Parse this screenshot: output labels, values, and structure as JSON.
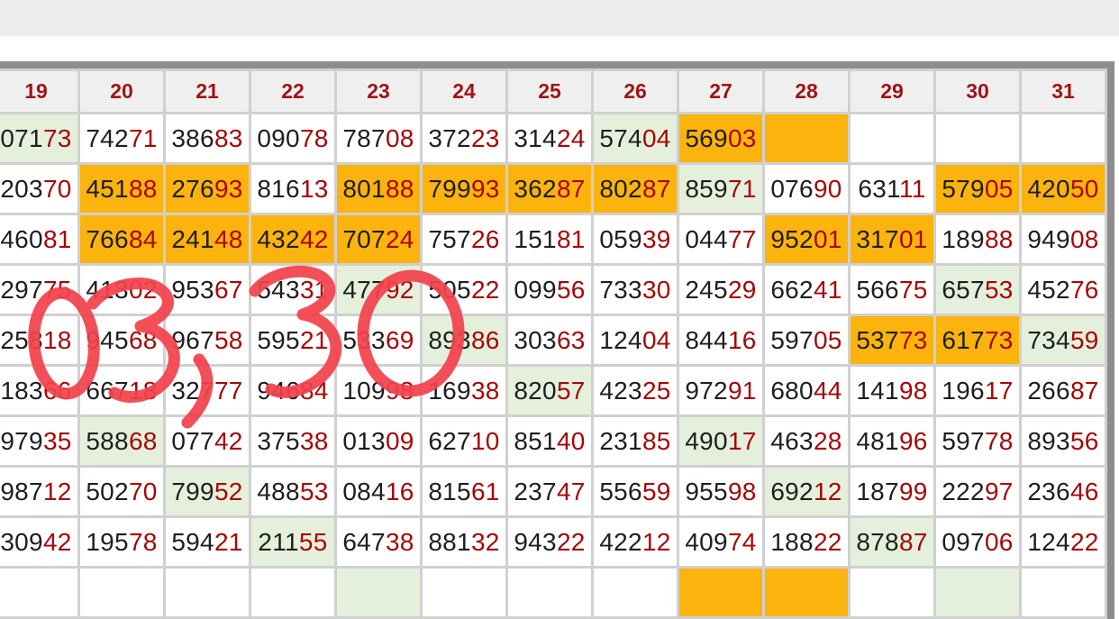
{
  "table": {
    "columns": [
      "19",
      "20",
      "21",
      "22",
      "23",
      "24",
      "25",
      "26",
      "27",
      "28",
      "29",
      "30",
      "31"
    ],
    "rows": [
      {
        "cells": [
          {
            "v": "07173",
            "bg": "g"
          },
          {
            "v": "74271"
          },
          {
            "v": "38683"
          },
          {
            "v": "09078"
          },
          {
            "v": "78708"
          },
          {
            "v": "37223"
          },
          {
            "v": "31424"
          },
          {
            "v": "57404",
            "bg": "g"
          },
          {
            "v": "56903",
            "bg": "o"
          },
          {
            "v": "",
            "bg": "o"
          },
          {
            "v": ""
          },
          {
            "v": ""
          },
          {
            "v": ""
          }
        ]
      },
      {
        "cells": [
          {
            "v": "20370"
          },
          {
            "v": "45188",
            "bg": "o"
          },
          {
            "v": "27693",
            "bg": "o"
          },
          {
            "v": "81613"
          },
          {
            "v": "80188",
            "bg": "o"
          },
          {
            "v": "79993",
            "bg": "o"
          },
          {
            "v": "36287",
            "bg": "o"
          },
          {
            "v": "80287",
            "bg": "o"
          },
          {
            "v": "85971",
            "bg": "g"
          },
          {
            "v": "07690"
          },
          {
            "v": "63111"
          },
          {
            "v": "57905",
            "bg": "o"
          },
          {
            "v": "42050",
            "bg": "o"
          }
        ]
      },
      {
        "cells": [
          {
            "v": "46081"
          },
          {
            "v": "76684",
            "bg": "o"
          },
          {
            "v": "24148",
            "bg": "o"
          },
          {
            "v": "43242",
            "bg": "o"
          },
          {
            "v": "70724",
            "bg": "o"
          },
          {
            "v": "75726"
          },
          {
            "v": "15181"
          },
          {
            "v": "05939"
          },
          {
            "v": "04477"
          },
          {
            "v": "95201",
            "bg": "o"
          },
          {
            "v": "31701",
            "bg": "o"
          },
          {
            "v": "18988"
          },
          {
            "v": "94908"
          }
        ]
      },
      {
        "cells": [
          {
            "v": "29775"
          },
          {
            "v": "41302"
          },
          {
            "v": "95367"
          },
          {
            "v": "54331"
          },
          {
            "v": "47792",
            "bg": "g"
          },
          {
            "v": "50522"
          },
          {
            "v": "09956"
          },
          {
            "v": "73330"
          },
          {
            "v": "24529"
          },
          {
            "v": "66241"
          },
          {
            "v": "56675"
          },
          {
            "v": "65753",
            "bg": "g"
          },
          {
            "v": "45276"
          }
        ]
      },
      {
        "cells": [
          {
            "v": "25818"
          },
          {
            "v": "94568"
          },
          {
            "v": "96758"
          },
          {
            "v": "59521"
          },
          {
            "v": "53369"
          },
          {
            "v": "89386",
            "bg": "g"
          },
          {
            "v": "30363"
          },
          {
            "v": "12404"
          },
          {
            "v": "84416"
          },
          {
            "v": "59705"
          },
          {
            "v": "53773",
            "bg": "o"
          },
          {
            "v": "61773",
            "bg": "o"
          },
          {
            "v": "73459",
            "bg": "g"
          }
        ]
      },
      {
        "cells": [
          {
            "v": "18366"
          },
          {
            "v": "66718"
          },
          {
            "v": "32777"
          },
          {
            "v": "94684"
          },
          {
            "v": "10998"
          },
          {
            "v": "16938"
          },
          {
            "v": "82057",
            "bg": "g"
          },
          {
            "v": "42325"
          },
          {
            "v": "97291"
          },
          {
            "v": "68044"
          },
          {
            "v": "14198"
          },
          {
            "v": "19617"
          },
          {
            "v": "26687"
          }
        ]
      },
      {
        "cells": [
          {
            "v": "97935"
          },
          {
            "v": "58868",
            "bg": "g"
          },
          {
            "v": "07742"
          },
          {
            "v": "37538"
          },
          {
            "v": "01309"
          },
          {
            "v": "62710"
          },
          {
            "v": "85140"
          },
          {
            "v": "23185"
          },
          {
            "v": "49017",
            "bg": "g"
          },
          {
            "v": "46328"
          },
          {
            "v": "48196"
          },
          {
            "v": "59778"
          },
          {
            "v": "89356"
          }
        ]
      },
      {
        "cells": [
          {
            "v": "98712"
          },
          {
            "v": "50270"
          },
          {
            "v": "79952",
            "bg": "g"
          },
          {
            "v": "48853"
          },
          {
            "v": "08416"
          },
          {
            "v": "81561"
          },
          {
            "v": "23747"
          },
          {
            "v": "55659"
          },
          {
            "v": "95598"
          },
          {
            "v": "69212",
            "bg": "g"
          },
          {
            "v": "18799"
          },
          {
            "v": "22297"
          },
          {
            "v": "23646"
          }
        ]
      },
      {
        "cells": [
          {
            "v": "30942"
          },
          {
            "v": "19578"
          },
          {
            "v": "59421"
          },
          {
            "v": "21155",
            "bg": "g"
          },
          {
            "v": "64738"
          },
          {
            "v": "88132"
          },
          {
            "v": "94322"
          },
          {
            "v": "42212"
          },
          {
            "v": "40974"
          },
          {
            "v": "18822"
          },
          {
            "v": "87887",
            "bg": "g"
          },
          {
            "v": "09706"
          },
          {
            "v": "12422"
          }
        ]
      }
    ],
    "partial_row_bgs": [
      "",
      "",
      "",
      "",
      "g",
      "",
      "",
      "",
      "o",
      "o",
      "",
      "g",
      ""
    ]
  },
  "annotation": {
    "text": "03,30",
    "color": "#f2424b"
  },
  "colors": {
    "highlight_orange": "#fbb30d",
    "highlight_green": "#e4f0dc",
    "digit_black": "#1e1e1e",
    "digit_red": "#a70606",
    "header_red": "#9e1414",
    "grid_line": "#d0d0d0",
    "outer_border": "#8d8d8d",
    "top_band": "#ececec"
  }
}
